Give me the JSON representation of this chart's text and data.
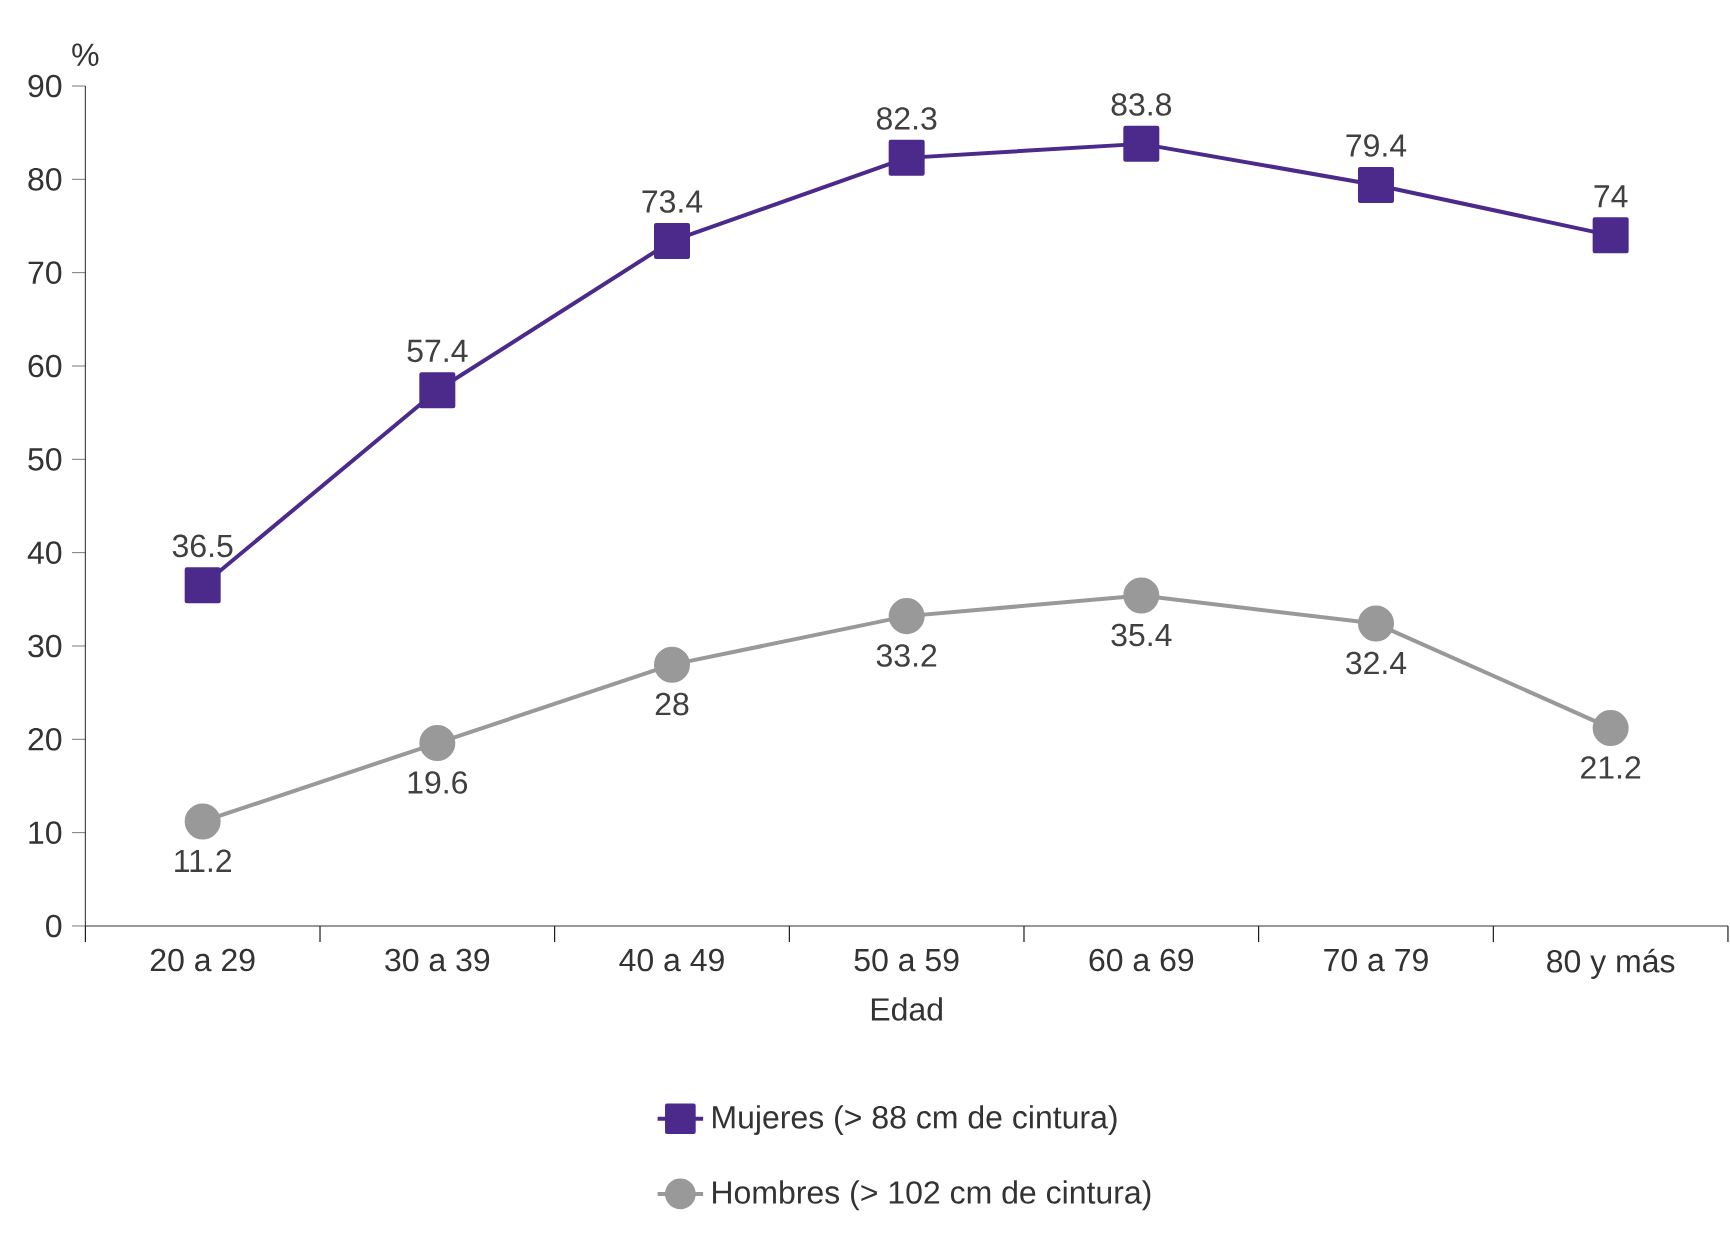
{
  "chart_data": {
    "type": "line",
    "xlabel": "Edad",
    "ylabel": "%",
    "categories": [
      "20 a 29",
      "30 a 39",
      "40 a 49",
      "50 a 59",
      "60 a 69",
      "70 a 79",
      "80 y más"
    ],
    "series": [
      {
        "name": "Mujeres (> 88 cm de cintura)",
        "color": "#4b2a8c",
        "marker": "square",
        "values": [
          36.5,
          57.4,
          73.4,
          82.3,
          83.8,
          79.4,
          74
        ]
      },
      {
        "name": "Hombres (> 102 cm de cintura)",
        "color": "#999999",
        "marker": "circle",
        "values": [
          11.2,
          19.6,
          28,
          33.2,
          35.4,
          32.4,
          21.2
        ]
      }
    ],
    "ylim": [
      0,
      90
    ],
    "yticks": [
      0,
      10,
      20,
      30,
      40,
      50,
      60,
      70,
      80,
      90
    ],
    "data_labels": true,
    "legend": "bottom",
    "grid": false,
    "line_style": "solid"
  }
}
